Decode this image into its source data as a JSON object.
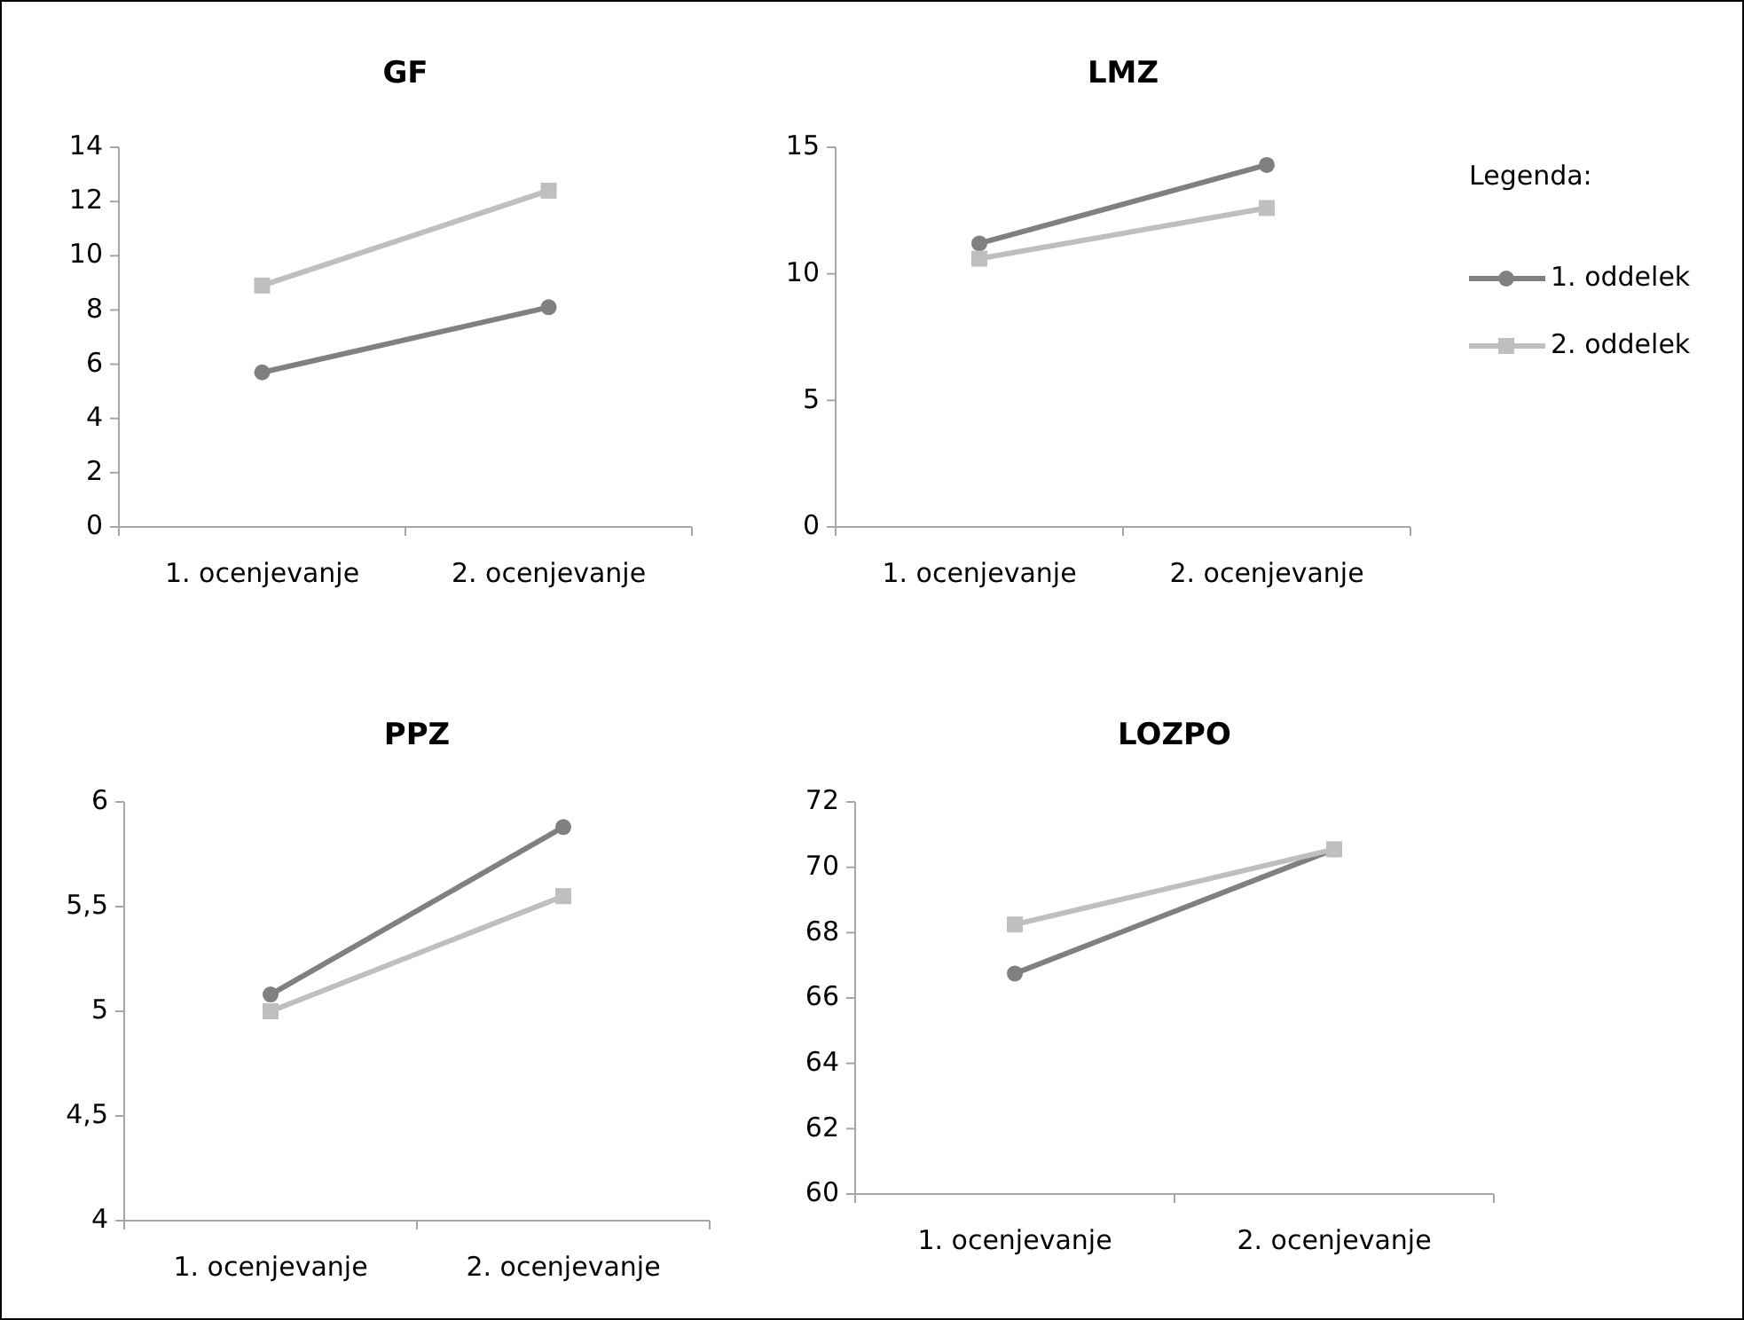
{
  "chart_data": [
    {
      "type": "line",
      "title": "GF",
      "categories": [
        "1. ocenjevanje",
        "2. ocenjevanje"
      ],
      "ylim": [
        0,
        14
      ],
      "yticks": [
        0,
        2,
        4,
        6,
        8,
        10,
        12,
        14
      ],
      "legend": false,
      "series": [
        {
          "color": "#808080",
          "marker": "circle",
          "values": [
            5.7,
            8.1
          ]
        },
        {
          "color": "#bfbfbf",
          "marker": "square",
          "values": [
            8.9,
            12.4
          ]
        }
      ]
    },
    {
      "type": "line",
      "title": "LMZ",
      "categories": [
        "1. ocenjevanje",
        "2. ocenjevanje"
      ],
      "ylim": [
        0,
        15
      ],
      "yticks": [
        0,
        5,
        10,
        15
      ],
      "legend": "right",
      "legend_title": "Legenda:",
      "series": [
        {
          "name": "1. oddelek",
          "color": "#808080",
          "marker": "circle",
          "values": [
            11.2,
            14.3
          ]
        },
        {
          "name": "2. oddelek",
          "color": "#bfbfbf",
          "marker": "square",
          "values": [
            10.6,
            12.6
          ]
        }
      ]
    },
    {
      "type": "line",
      "title": "PPZ",
      "categories": [
        "1. ocenjevanje",
        "2. ocenjevanje"
      ],
      "ylim": [
        4,
        6
      ],
      "yticks": [
        4,
        {
          "value": 4.5,
          "label": "4,5"
        },
        5,
        {
          "value": 5.5,
          "label": "5,5"
        },
        6
      ],
      "legend": false,
      "series": [
        {
          "color": "#808080",
          "marker": "circle",
          "values": [
            5.08,
            5.88
          ]
        },
        {
          "color": "#bfbfbf",
          "marker": "square",
          "values": [
            5.0,
            5.55
          ]
        }
      ]
    },
    {
      "type": "line",
      "title": "LOZPO",
      "categories": [
        "1. ocenjevanje",
        "2. ocenjevanje"
      ],
      "ylim": [
        60,
        72
      ],
      "yticks": [
        60,
        62,
        64,
        66,
        68,
        70,
        72
      ],
      "legend": false,
      "series": [
        {
          "color": "#808080",
          "marker": "circle",
          "values": [
            66.75,
            70.55
          ]
        },
        {
          "color": "#bfbfbf",
          "marker": "square",
          "values": [
            68.25,
            70.55
          ]
        }
      ]
    }
  ]
}
